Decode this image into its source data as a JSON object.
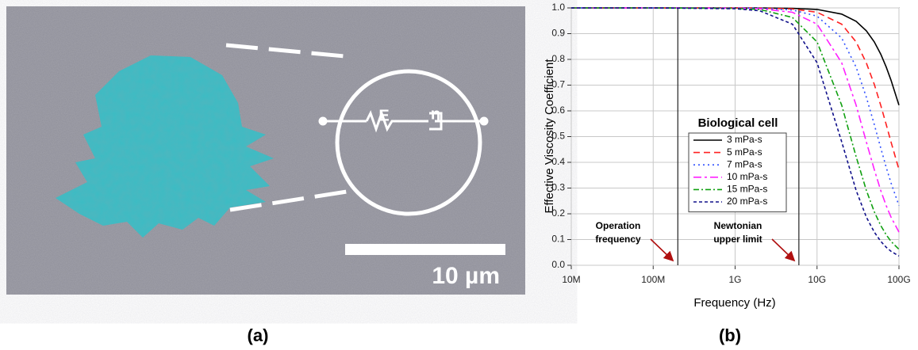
{
  "panel_a": {
    "spring_label": "E",
    "dashpot_label": "η",
    "scale_label": "10 µm",
    "caption": "(a)"
  },
  "chart_data": {
    "type": "line",
    "caption": "(b)",
    "xlabel": "Frequency (Hz)",
    "ylabel": "Effective Viscosity Coefficient",
    "log_x": true,
    "xlim": [
      10000000,
      100000000000
    ],
    "ylim": [
      0,
      1
    ],
    "xticks": [
      {
        "value": 10000000,
        "label": "10M"
      },
      {
        "value": 100000000,
        "label": "100M"
      },
      {
        "value": 1000000000,
        "label": "1G"
      },
      {
        "value": 10000000000,
        "label": "10G"
      },
      {
        "value": 100000000000,
        "label": "100G"
      }
    ],
    "yticks": [
      {
        "value": 0,
        "label": "0.0"
      },
      0.1,
      0.2,
      0.3,
      0.4,
      0.5,
      0.6,
      0.7,
      0.8,
      0.9,
      {
        "value": 1,
        "label": "1.0"
      }
    ],
    "vlines": [
      200000000,
      6000000000
    ],
    "legend_title": "Biological cell",
    "annotations": [
      {
        "lines": [
          "Operation",
          "frequency"
        ]
      },
      {
        "lines": [
          "Newtonian",
          "upper limit"
        ]
      }
    ],
    "x": [
      10000000,
      100000000,
      1000000000,
      2000000000,
      5000000000,
      10000000000,
      20000000000,
      30000000000,
      40000000000,
      50000000000,
      60000000000,
      70000000000,
      80000000000,
      100000000000
    ],
    "series": [
      {
        "name": "3 mPa-s",
        "color": "#000000",
        "dash": "none",
        "values": [
          1,
          1,
          1,
          1,
          0.998,
          0.994,
          0.976,
          0.948,
          0.911,
          0.868,
          0.82,
          0.77,
          0.719,
          0.622
        ]
      },
      {
        "name": "5 mPa-s",
        "color": "#ff2020",
        "dash": "8 5",
        "values": [
          1,
          1,
          1,
          0.999,
          0.996,
          0.983,
          0.937,
          0.868,
          0.786,
          0.703,
          0.621,
          0.546,
          0.479,
          0.372
        ]
      },
      {
        "name": "7 mPa-s",
        "color": "#3050ff",
        "dash": "2 4",
        "values": [
          1,
          1,
          1,
          0.999,
          0.992,
          0.968,
          0.883,
          0.77,
          0.653,
          0.547,
          0.455,
          0.38,
          0.32,
          0.232
        ]
      },
      {
        "name": "10 mPa-s",
        "color": "#ff20ff",
        "dash": "10 4 3 4",
        "values": [
          1,
          1,
          0.999,
          0.997,
          0.983,
          0.937,
          0.787,
          0.622,
          0.479,
          0.372,
          0.29,
          0.231,
          0.187,
          0.129
        ]
      },
      {
        "name": "15 mPa-s",
        "color": "#10a010",
        "dash": "7 3 2 3",
        "values": [
          1,
          1,
          0.998,
          0.994,
          0.963,
          0.868,
          0.622,
          0.422,
          0.291,
          0.208,
          0.154,
          0.118,
          0.093,
          0.062
        ]
      },
      {
        "name": "20 mPa-s",
        "color": "#10108a",
        "dash": "4 3",
        "values": [
          1,
          1,
          0.997,
          0.989,
          0.937,
          0.787,
          0.48,
          0.291,
          0.187,
          0.129,
          0.093,
          0.07,
          0.054,
          0.036
        ]
      }
    ]
  }
}
